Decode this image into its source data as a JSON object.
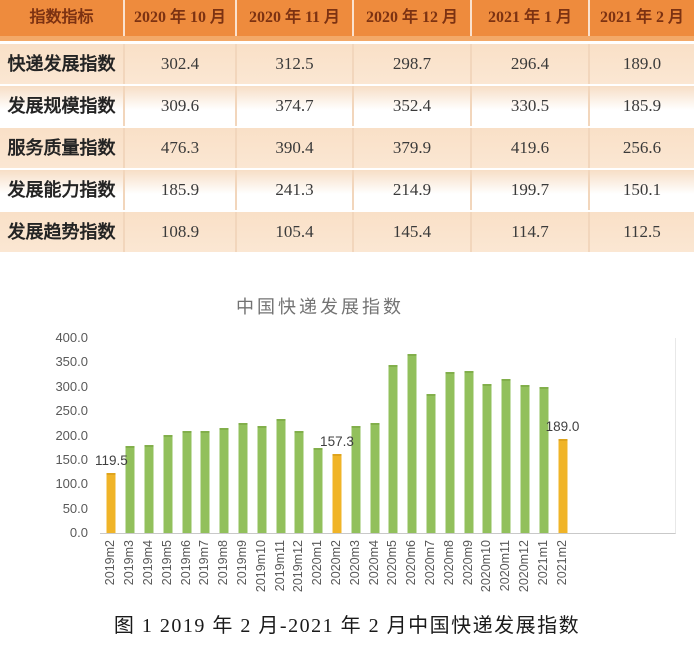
{
  "table": {
    "header": [
      "指数指标",
      "2020 年 10 月",
      "2020 年 11 月",
      "2020 年 12 月",
      "2021 年 1 月",
      "2021 年 2 月"
    ],
    "rows": [
      {
        "label": "快递发展指数",
        "values": [
          "302.4",
          "312.5",
          "298.7",
          "296.4",
          "189.0"
        ]
      },
      {
        "label": "发展规模指数",
        "values": [
          "309.6",
          "374.7",
          "352.4",
          "330.5",
          "185.9"
        ]
      },
      {
        "label": "服务质量指数",
        "values": [
          "476.3",
          "390.4",
          "379.9",
          "419.6",
          "256.6"
        ]
      },
      {
        "label": "发展能力指数",
        "values": [
          "185.9",
          "241.3",
          "214.9",
          "199.7",
          "150.1"
        ]
      },
      {
        "label": "发展趋势指数",
        "values": [
          "108.9",
          "105.4",
          "145.4",
          "114.7",
          "112.5"
        ]
      }
    ]
  },
  "chart_data": {
    "type": "bar",
    "title": "中国快递发展指数",
    "x": [
      "2019m2",
      "2019m3",
      "2019m4",
      "2019m5",
      "2019m6",
      "2019m7",
      "2019m8",
      "2019m9",
      "2019m10",
      "2019m11",
      "2019m12",
      "2020m1",
      "2020m2",
      "2020m3",
      "2020m4",
      "2020m5",
      "2020m6",
      "2020m7",
      "2020m8",
      "2020m9",
      "2020m10",
      "2020m11",
      "2020m12",
      "2021m1",
      "2021m2"
    ],
    "values": [
      119.5,
      174,
      176,
      196,
      206,
      206,
      212,
      222,
      216,
      229,
      205,
      170,
      157.3,
      215,
      222,
      341,
      363,
      281,
      327,
      328,
      302.4,
      312.5,
      298.7,
      296.4,
      189.0
    ],
    "highlighted": [
      {
        "index": 0,
        "label": "119.5"
      },
      {
        "index": 12,
        "label": "157.3"
      },
      {
        "index": 24,
        "label": "189.0"
      }
    ],
    "ylim": [
      0,
      400
    ],
    "yticks": [
      "0.0",
      "50.0",
      "100.0",
      "150.0",
      "200.0",
      "250.0",
      "300.0",
      "350.0",
      "400.0"
    ],
    "grid": false,
    "legend_position": "none",
    "colors": {
      "bar": "#92C05C",
      "highlight_bar": "#F0B428"
    }
  },
  "caption": "图 1 2019 年 2 月-2021 年 2 月中国快递发展指数"
}
